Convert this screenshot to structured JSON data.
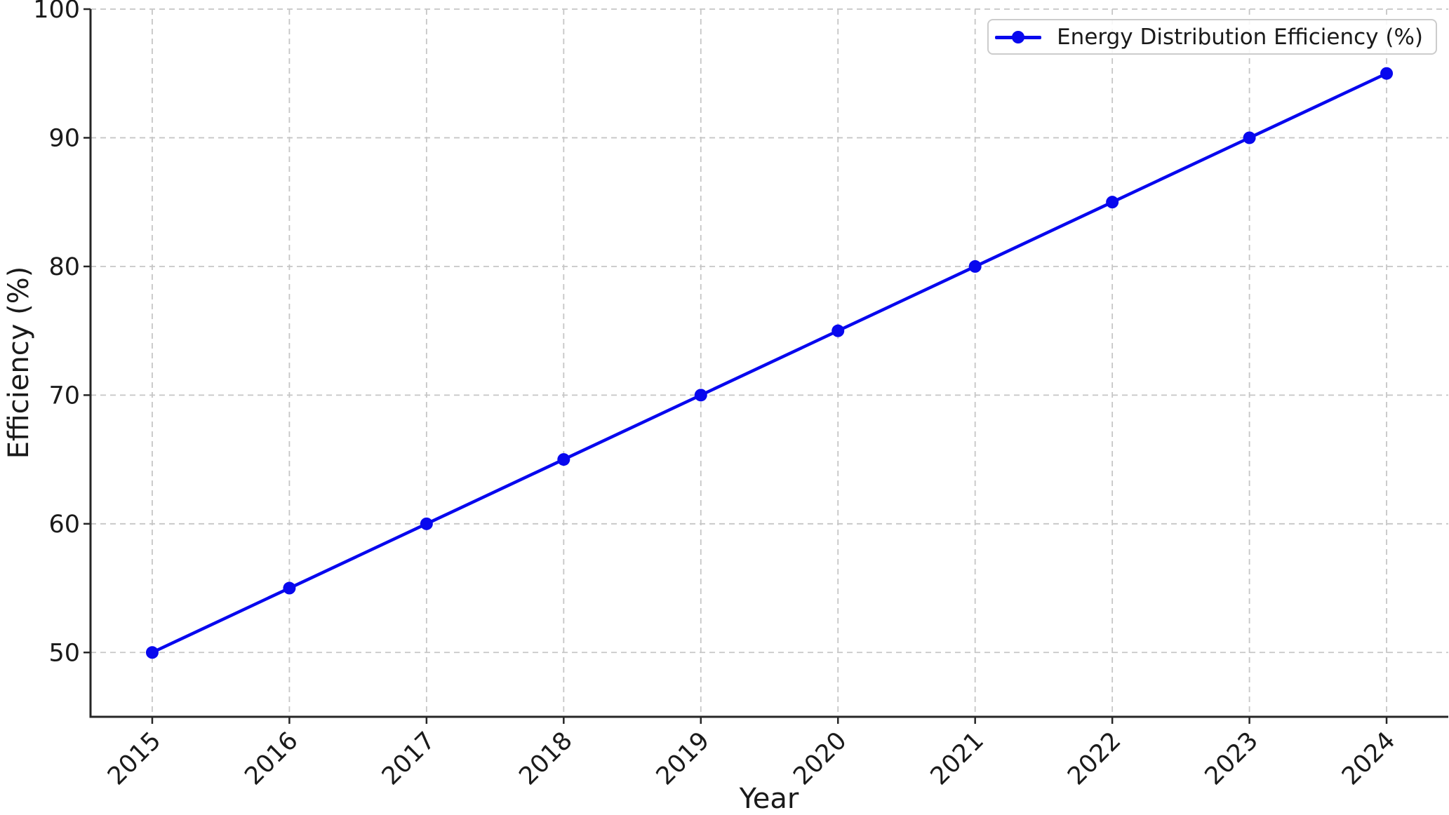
{
  "figure": {
    "background": "#ffffff",
    "text_color": "#1a1a1a",
    "axis_color": "#262626",
    "grid_color": "#c6c6c6"
  },
  "chart_data": {
    "type": "line",
    "title": "",
    "xlabel": "Year",
    "ylabel": "Efficiency (%)",
    "x": [
      2015,
      2016,
      2017,
      2018,
      2019,
      2020,
      2021,
      2022,
      2023,
      2024
    ],
    "series": [
      {
        "name": "Energy Distribution Efficiency (%)",
        "values": [
          50,
          55,
          60,
          65,
          70,
          75,
          80,
          85,
          90,
          95
        ],
        "color": "#0808ee",
        "marker": "circle",
        "line_width": 4.5,
        "marker_radius": 9
      }
    ],
    "legend": {
      "label": "Energy Distribution Efficiency (%)",
      "position": "upper-right"
    },
    "xlim": [
      2014.55,
      2024.45
    ],
    "ylim": [
      45,
      100
    ],
    "xticks": [
      2015,
      2016,
      2017,
      2018,
      2019,
      2020,
      2021,
      2022,
      2023,
      2024
    ],
    "yticks": [
      50,
      60,
      70,
      80,
      90,
      100
    ],
    "xtick_rotation": -45,
    "grid": true,
    "grid_style": "dashed",
    "legend_position": "upper right"
  }
}
